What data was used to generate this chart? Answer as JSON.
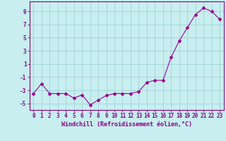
{
  "x": [
    0,
    1,
    2,
    3,
    4,
    5,
    6,
    7,
    8,
    9,
    10,
    11,
    12,
    13,
    14,
    15,
    16,
    17,
    18,
    19,
    20,
    21,
    22,
    23
  ],
  "y": [
    -3.5,
    -2.0,
    -3.5,
    -3.5,
    -3.5,
    -4.2,
    -3.7,
    -5.2,
    -4.5,
    -3.8,
    -3.5,
    -3.5,
    -3.5,
    -3.2,
    -1.8,
    -1.5,
    -1.5,
    2.0,
    4.5,
    6.5,
    8.5,
    9.5,
    9.0,
    7.8
  ],
  "line_color": "#990099",
  "marker": "D",
  "marker_size": 2.0,
  "bg_color": "#c8eef0",
  "grid_color": "#a0d4d8",
  "xlabel": "Windchill (Refroidissement éolien,°C)",
  "xlim": [
    -0.5,
    23.5
  ],
  "ylim": [
    -6.0,
    10.5
  ],
  "yticks": [
    -5,
    -3,
    -1,
    1,
    3,
    5,
    7,
    9
  ],
  "xticks": [
    0,
    1,
    2,
    3,
    4,
    5,
    6,
    7,
    8,
    9,
    10,
    11,
    12,
    13,
    14,
    15,
    16,
    17,
    18,
    19,
    20,
    21,
    22,
    23
  ],
  "tick_color": "#880088",
  "label_color": "#880088",
  "axis_color": "#880088",
  "tick_fontsize": 5.5,
  "xlabel_fontsize": 6.0
}
